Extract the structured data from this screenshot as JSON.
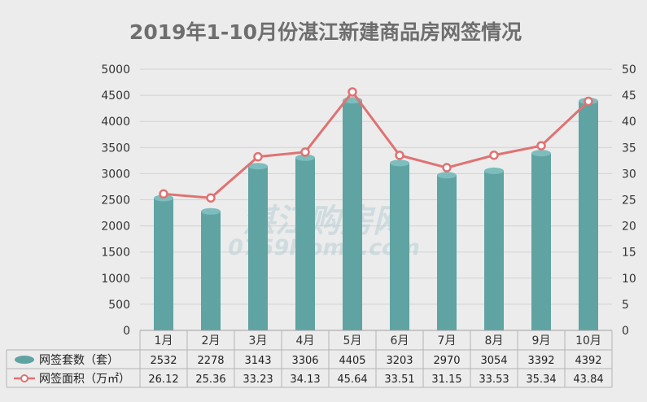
{
  "chart_data": {
    "type": "bar",
    "title": "2019年1-10月份湛江新建商品房网签情况",
    "categories": [
      "1月",
      "2月",
      "3月",
      "4月",
      "5月",
      "6月",
      "7月",
      "8月",
      "9月",
      "10月"
    ],
    "series": [
      {
        "name": "网签套数（套）",
        "type": "bar",
        "axis": "left",
        "color": "#5fa3a3",
        "values": [
          2532,
          2278,
          3143,
          3306,
          4405,
          3203,
          2970,
          3054,
          3392,
          4392
        ]
      },
      {
        "name": "网签面积（万㎡）",
        "type": "line",
        "axis": "right",
        "color": "#e07272",
        "values": [
          26.12,
          25.36,
          33.23,
          34.13,
          45.64,
          33.51,
          31.15,
          33.53,
          35.34,
          43.84
        ]
      }
    ],
    "y_left": {
      "min": 0,
      "max": 5000,
      "step": 500,
      "ticks": [
        0,
        500,
        1000,
        1500,
        2000,
        2500,
        3000,
        3500,
        4000,
        4500,
        5000
      ]
    },
    "y_right": {
      "min": 0,
      "max": 50,
      "step": 5,
      "ticks": [
        0,
        5,
        10,
        15,
        20,
        25,
        30,
        35,
        40,
        45,
        50
      ]
    },
    "grid": true,
    "data_table": true,
    "xlabel": "",
    "ylabel": ""
  },
  "watermark": {
    "line1": "湛江购房网",
    "line2": "0759Home.com"
  }
}
